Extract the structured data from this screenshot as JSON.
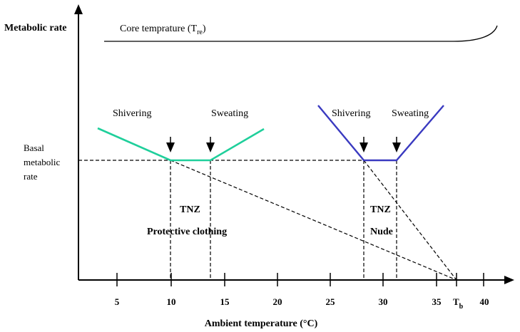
{
  "figure": {
    "y_axis_title": "Metabolic rate",
    "x_axis_title": "Ambient temperature (°C)",
    "core_temp_label": "Core temprature (T",
    "core_temp_subscript": "re",
    "core_temp_close": ")",
    "basal_label_lines": [
      "Basal",
      "metabolic",
      "rate"
    ],
    "x_ticks": [
      "5",
      "10",
      "15",
      "20",
      "25",
      "30",
      "35",
      "40"
    ],
    "tb_label": "T",
    "tb_subscript": "b",
    "clothed": {
      "left_label": "Shivering",
      "right_label": "Sweating",
      "tnz_label": "TNZ",
      "condition_label": "Protective clothing",
      "color": "#1fcf9b"
    },
    "nude": {
      "left_label": "Shivering",
      "right_label": "Sweating",
      "tnz_label": "TNZ",
      "condition_label": "Nude",
      "color": "#3a3ac0"
    }
  }
}
